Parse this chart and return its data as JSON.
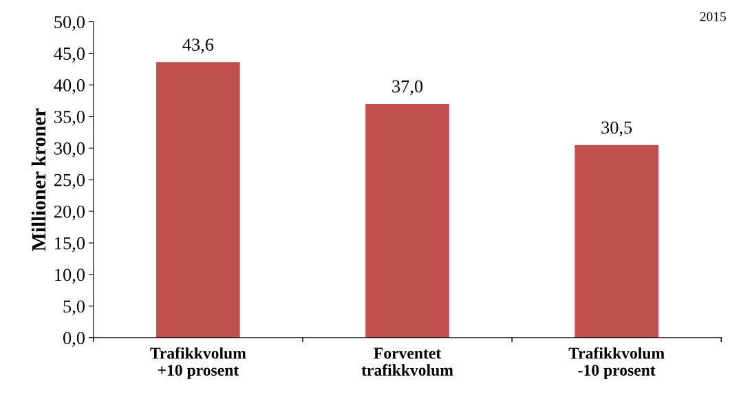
{
  "chart_data": {
    "type": "bar",
    "ylabel": "Millioner kroner",
    "categories": [
      "Trafikkvolum\n+10 prosent",
      "Forventet\ntrafikkvolum",
      "Trafikkvolum\n-10 prosent"
    ],
    "values": [
      43.6,
      37.0,
      30.5
    ],
    "value_labels": [
      "43,6",
      "37,0",
      "30,5"
    ],
    "color": "#c0504d",
    "ylim": [
      0,
      50
    ],
    "yticks": [
      {
        "value": 0,
        "label": "0,0"
      },
      {
        "value": 5,
        "label": "5,0"
      },
      {
        "value": 10,
        "label": "10,0"
      },
      {
        "value": 15,
        "label": "15,0"
      },
      {
        "value": 20,
        "label": "20,0"
      },
      {
        "value": 25,
        "label": "25,0"
      },
      {
        "value": 30,
        "label": "30,0"
      },
      {
        "value": 35,
        "label": "35,0"
      },
      {
        "value": 40,
        "label": "40,0"
      },
      {
        "value": 45,
        "label": "45,0"
      },
      {
        "value": 50,
        "label": "50,0"
      }
    ],
    "grid": false,
    "annotations": [
      "2015"
    ]
  }
}
